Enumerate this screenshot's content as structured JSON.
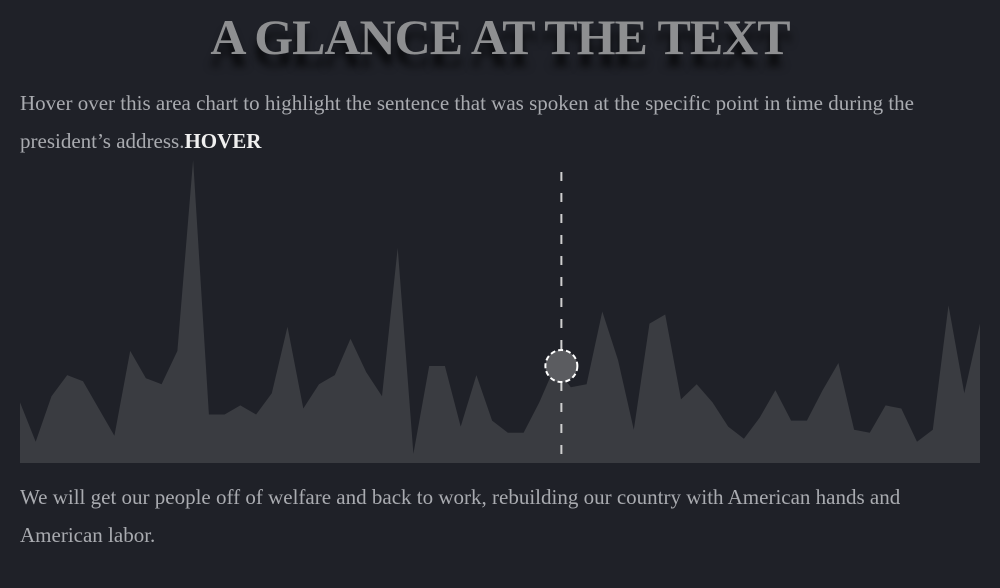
{
  "page": {
    "title": "A GLANCE AT THE TEXT",
    "intro_text": "Hover over this area chart to highlight the sentence that was spoken at the specific point in time during the president’s address.",
    "hover_label": "HOVER",
    "highlighted_sentence": "We will get our people off of welfare and back to work, rebuilding our country with American hands and American labor."
  },
  "colors": {
    "background": "#1f2128",
    "area_fill": "#3a3c41",
    "guide_line": "#cfcfcf",
    "marker_fill": "#5b5c60",
    "marker_stroke": "#ffffff"
  },
  "chart_data": {
    "type": "area",
    "title": "",
    "xlabel": "",
    "ylabel": "",
    "ylim": [
      0,
      100
    ],
    "grid": false,
    "legend": "none",
    "x": [
      0,
      1,
      2,
      3,
      4,
      5,
      6,
      7,
      8,
      9,
      10,
      11,
      12,
      13,
      14,
      15,
      16,
      17,
      18,
      19,
      20,
      21,
      22,
      23,
      24,
      25,
      26,
      27,
      28,
      29,
      30,
      31,
      32,
      33,
      34,
      35,
      36,
      37,
      38,
      39,
      40,
      41,
      42,
      43,
      44,
      45,
      46,
      47,
      48,
      49,
      50,
      51,
      52,
      53,
      54,
      55,
      56,
      57,
      58,
      59,
      60,
      61,
      62,
      63,
      64,
      65,
      66,
      67,
      68,
      69,
      70,
      71,
      72,
      73,
      74,
      75,
      76,
      77,
      78,
      79
    ],
    "series": [
      {
        "values": [
          20,
          7,
          22,
          29,
          27,
          18,
          9,
          37,
          28,
          26,
          37,
          100,
          16,
          16,
          19,
          16,
          23,
          45,
          18,
          26,
          29,
          41,
          30,
          22,
          71,
          3,
          32,
          32,
          12,
          29,
          14,
          10,
          10,
          20,
          32,
          25,
          26,
          50,
          34,
          11,
          46,
          49,
          21,
          26,
          20,
          12,
          8,
          15,
          24,
          14,
          14,
          24,
          33,
          11,
          10,
          19,
          18,
          7,
          11,
          52,
          23,
          46
        ],
        "x": [
          0,
          1,
          2,
          3,
          4,
          5,
          6,
          7,
          8,
          9,
          10,
          11,
          12,
          13,
          14,
          15,
          16,
          17,
          18,
          19,
          20,
          21,
          22,
          23,
          24,
          25,
          26,
          27,
          28,
          29,
          30,
          31,
          32,
          33,
          34,
          35,
          36,
          37,
          38,
          39,
          40,
          41,
          42,
          43,
          44,
          45,
          46,
          47,
          48,
          49,
          50,
          51,
          52,
          53,
          54,
          55,
          56,
          57,
          58,
          59,
          60,
          61
        ]
      }
    ],
    "highlight": {
      "x": 34.4,
      "y": 32
    }
  }
}
